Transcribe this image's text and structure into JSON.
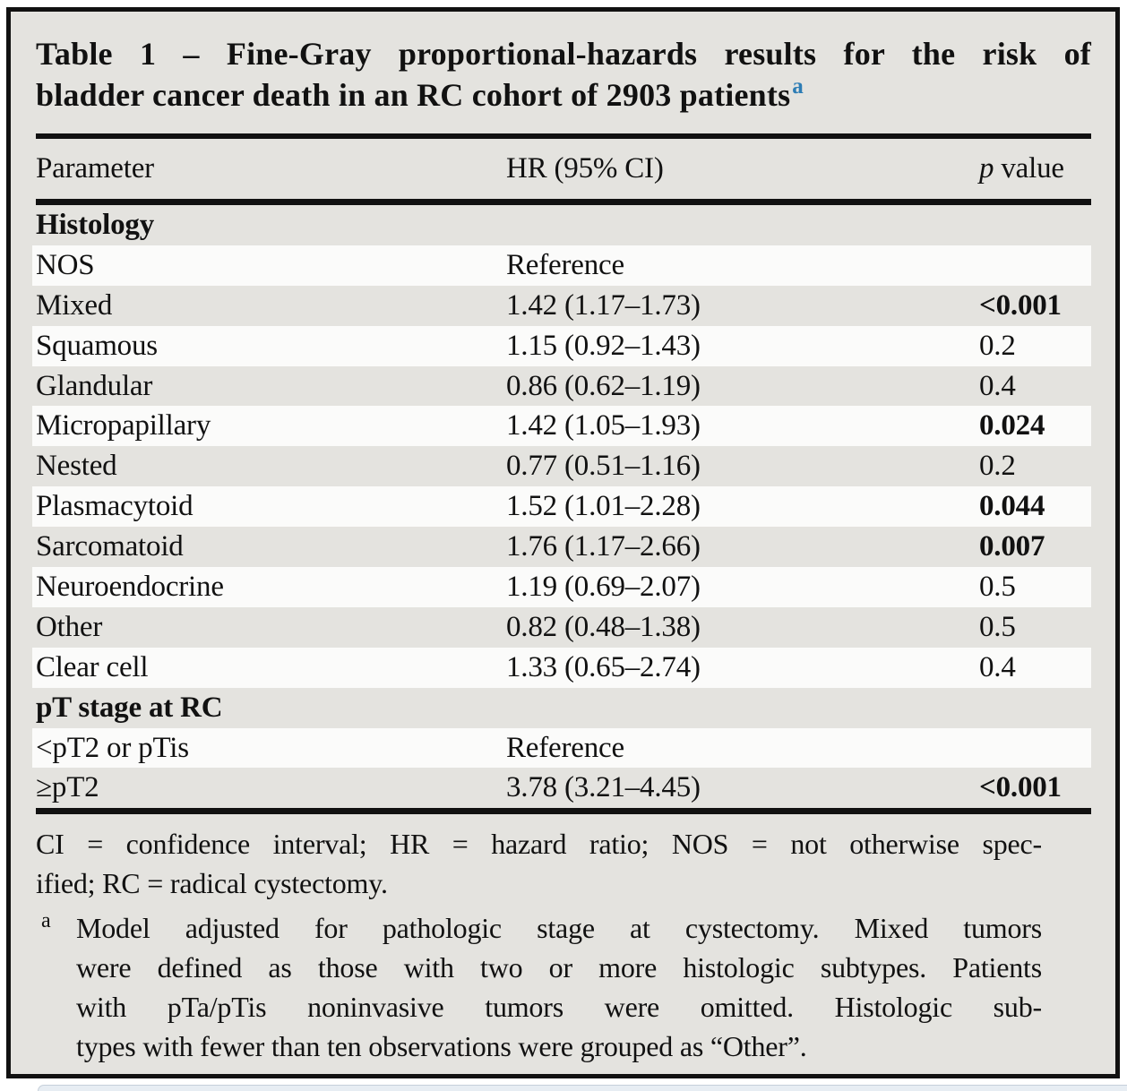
{
  "colors": {
    "pageBg": "#ffffff",
    "paper": "#e4e3df",
    "rowWhite": "#fbfbfa",
    "ink": "#111111",
    "blue": "#2d7db5",
    "stripBg": "#e7edf3",
    "stripEdge": "#c6d0da"
  },
  "title": {
    "line1": "Table 1 – Fine-Gray proportional-hazards results for the risk of",
    "line2": "bladder cancer death in an RC cohort of 2903 patients",
    "superscript": "a"
  },
  "header": {
    "parameter": "Parameter",
    "hr": "HR (95% CI)",
    "p_symbol": "p",
    "p_label": " value"
  },
  "sections": [
    {
      "label": "Histology",
      "rows": [
        {
          "parameter": "NOS",
          "hr": "Reference",
          "p": "",
          "bold_p": false
        },
        {
          "parameter": "Mixed",
          "hr": "1.42 (1.17–1.73)",
          "p": "<0.001",
          "bold_p": true
        },
        {
          "parameter": "Squamous",
          "hr": "1.15 (0.92–1.43)",
          "p": "0.2",
          "bold_p": false
        },
        {
          "parameter": "Glandular",
          "hr": "0.86 (0.62–1.19)",
          "p": "0.4",
          "bold_p": false
        },
        {
          "parameter": "Micropapillary",
          "hr": "1.42 (1.05–1.93)",
          "p": "0.024",
          "bold_p": true
        },
        {
          "parameter": "Nested",
          "hr": "0.77 (0.51–1.16)",
          "p": "0.2",
          "bold_p": false
        },
        {
          "parameter": "Plasmacytoid",
          "hr": "1.52 (1.01–2.28)",
          "p": "0.044",
          "bold_p": true
        },
        {
          "parameter": "Sarcomatoid",
          "hr": "1.76 (1.17–2.66)",
          "p": "0.007",
          "bold_p": true
        },
        {
          "parameter": "Neuroendocrine",
          "hr": "1.19 (0.69–2.07)",
          "p": "0.5",
          "bold_p": false
        },
        {
          "parameter": "Other",
          "hr": "0.82 (0.48–1.38)",
          "p": "0.5",
          "bold_p": false
        },
        {
          "parameter": "Clear cell",
          "hr": "1.33 (0.65–2.74)",
          "p": "0.4",
          "bold_p": false
        }
      ]
    },
    {
      "label": "pT stage at RC",
      "rows": [
        {
          "parameter": "<pT2 or pTis",
          "hr": "Reference",
          "p": "",
          "bold_p": false
        },
        {
          "parameter": "≥pT2",
          "hr": "3.78 (3.21–4.45)",
          "p": "<0.001",
          "bold_p": true
        }
      ]
    }
  ],
  "footnotes": {
    "abbreviations": [
      "CI = confidence interval; HR = hazard ratio; NOS = not otherwise spec-",
      "ified; RC = radical cystectomy."
    ],
    "note_a_marker": "a",
    "note_a_lines": [
      "Model adjusted for pathologic stage at cystectomy. Mixed tumors",
      "were defined as those with two or more histologic subtypes. Patients",
      "with pTa/pTis noninvasive tumors were omitted. Histologic sub-",
      "types with fewer than ten observations were grouped as “Other”."
    ]
  }
}
